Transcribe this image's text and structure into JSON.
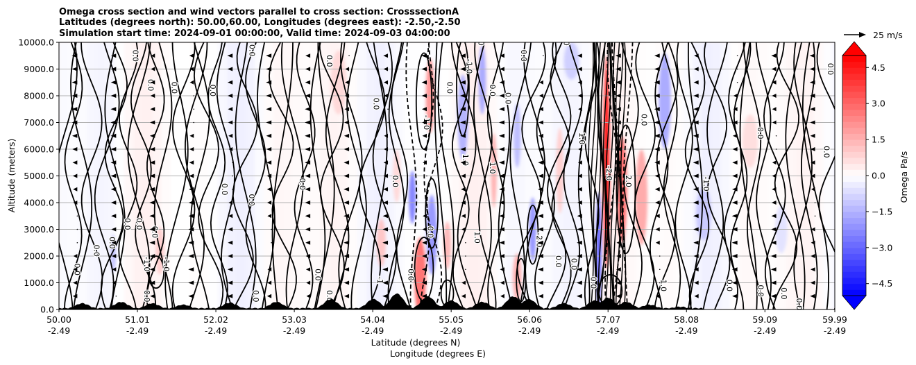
{
  "chart_data": {
    "type": "heatmap",
    "title_lines": [
      "Omega cross section and wind vectors parallel to cross section: CrosssectionA",
      "Latitudes (degrees north): 50.00,60.00, Longitudes (degrees east): -2.50,-2.50",
      "Simulation start time: 2024-09-01 00:00:00, Valid time: 2024-09-03 04:00:00"
    ],
    "ylabel": "Altitude (meters)",
    "xlabel_lines": [
      "Latitude (degrees N)",
      "Longitude (degrees E)"
    ],
    "ylim": [
      0,
      10000
    ],
    "yticks": [
      0,
      1000,
      2000,
      3000,
      4000,
      5000,
      6000,
      7000,
      8000,
      9000,
      10000
    ],
    "ytick_labels": [
      "0.0",
      "1000.0",
      "2000.0",
      "3000.0",
      "4000.0",
      "5000.0",
      "6000.0",
      "7000.0",
      "8000.0",
      "9000.0",
      "10000.0"
    ],
    "xlim": [
      50.0,
      59.99
    ],
    "xticks": [
      50.0,
      51.01,
      52.02,
      53.03,
      54.04,
      55.05,
      56.06,
      57.07,
      58.08,
      59.09,
      59.99
    ],
    "xtick_lat_labels": [
      "50.00",
      "51.01",
      "52.02",
      "53.03",
      "54.04",
      "55.05",
      "56.06",
      "57.07",
      "58.08",
      "59.09",
      "59.99"
    ],
    "xtick_lon_labels": [
      "-2.49",
      "-2.49",
      "-2.49",
      "-2.49",
      "-2.49",
      "-2.49",
      "-2.49",
      "-2.49",
      "-2.49",
      "-2.49",
      "-2.49"
    ],
    "grid": "horizontal",
    "colorbar": {
      "label": "Omega Pa/s",
      "range": [
        -5.0,
        5.0
      ],
      "step": 0.25,
      "ticks": [
        -4.5,
        -3.0,
        -1.5,
        0.0,
        1.5,
        3.0,
        4.5
      ],
      "tick_labels": [
        "−4.5",
        "−3.0",
        "−1.5",
        "0.0",
        "1.5",
        "3.0",
        "4.5"
      ],
      "extend": "both",
      "min_color": "#0000ff",
      "mid_color": "#ffffff",
      "max_color": "#ff0000"
    },
    "quiver_key": {
      "label": "25 m/s",
      "speed": 25
    },
    "wind_direction": "toward lower latitude (southward, leftward)",
    "contour_levels": [
      -2.0,
      -1.0,
      0.0,
      1.0,
      2.0
    ],
    "contour_labels": [
      {
        "lat": 50.95,
        "z": 9500,
        "text": "0.0"
      },
      {
        "lat": 52.45,
        "z": 9700,
        "text": "0.0"
      },
      {
        "lat": 53.45,
        "z": 9300,
        "text": "0.0"
      },
      {
        "lat": 51.15,
        "z": 8400,
        "text": "0.0"
      },
      {
        "lat": 51.45,
        "z": 8300,
        "text": "0.0"
      },
      {
        "lat": 51.95,
        "z": 8200,
        "text": "0.0"
      },
      {
        "lat": 54.05,
        "z": 7700,
        "text": "0.0"
      },
      {
        "lat": 55.0,
        "z": 8300,
        "text": "0.0"
      },
      {
        "lat": 55.55,
        "z": 8200,
        "text": "0.0"
      },
      {
        "lat": 55.75,
        "z": 7900,
        "text": "0.0"
      },
      {
        "lat": 55.95,
        "z": 9500,
        "text": "0.0"
      },
      {
        "lat": 56.5,
        "z": 10100,
        "text": "0.0"
      },
      {
        "lat": 55.4,
        "z": 10100,
        "text": "0.0"
      },
      {
        "lat": 57.5,
        "z": 7100,
        "text": "0.0"
      },
      {
        "lat": 59.0,
        "z": 6600,
        "text": "0.0"
      },
      {
        "lat": 59.9,
        "z": 9000,
        "text": "0.0"
      },
      {
        "lat": 59.85,
        "z": 5900,
        "text": "0.0"
      },
      {
        "lat": 54.7,
        "z": 7000,
        "text": "-1.0"
      },
      {
        "lat": 55.25,
        "z": 9100,
        "text": "-1.0"
      },
      {
        "lat": 56.7,
        "z": 6400,
        "text": "1.0"
      },
      {
        "lat": 58.3,
        "z": 4700,
        "text": "-1.0"
      },
      {
        "lat": 57.3,
        "z": 4800,
        "text": "2.0"
      },
      {
        "lat": 57.05,
        "z": 5100,
        "text": "-2.0"
      },
      {
        "lat": 56.15,
        "z": 2600,
        "text": "-2.0"
      },
      {
        "lat": 55.2,
        "z": 5600,
        "text": "1.0"
      },
      {
        "lat": 55.55,
        "z": 5300,
        "text": "1.0"
      },
      {
        "lat": 54.3,
        "z": 4800,
        "text": "0.0"
      },
      {
        "lat": 53.1,
        "z": 4700,
        "text": "0.0"
      },
      {
        "lat": 52.1,
        "z": 4500,
        "text": "0.0"
      },
      {
        "lat": 52.45,
        "z": 4100,
        "text": "0.0"
      },
      {
        "lat": 51.0,
        "z": 3200,
        "text": "0.0"
      },
      {
        "lat": 51.2,
        "z": 2900,
        "text": "0.0"
      },
      {
        "lat": 50.85,
        "z": 3200,
        "text": "0.0"
      },
      {
        "lat": 50.45,
        "z": 2200,
        "text": "0.0"
      },
      {
        "lat": 50.65,
        "z": 2500,
        "text": "0.0"
      },
      {
        "lat": 51.1,
        "z": 1700,
        "text": "-1.0"
      },
      {
        "lat": 51.35,
        "z": 1700,
        "text": "-1.0"
      },
      {
        "lat": 54.75,
        "z": 2900,
        "text": "0.0"
      },
      {
        "lat": 55.35,
        "z": 2700,
        "text": "1.0"
      },
      {
        "lat": 56.4,
        "z": 1800,
        "text": "0.0"
      },
      {
        "lat": 56.6,
        "z": 1700,
        "text": "0.0"
      },
      {
        "lat": 50.2,
        "z": 1500,
        "text": "0.0"
      },
      {
        "lat": 53.3,
        "z": 1300,
        "text": "0.0"
      },
      {
        "lat": 54.5,
        "z": 1300,
        "text": "0.0"
      },
      {
        "lat": 54.1,
        "z": 1100,
        "text": "-1"
      },
      {
        "lat": 53.45,
        "z": 500,
        "text": "0.0"
      },
      {
        "lat": 52.5,
        "z": 500,
        "text": "0.0"
      },
      {
        "lat": 51.1,
        "z": 500,
        "text": "0.0"
      },
      {
        "lat": 58.6,
        "z": 900,
        "text": "0.0"
      },
      {
        "lat": 59.0,
        "z": 700,
        "text": "0.0"
      },
      {
        "lat": 59.3,
        "z": 600,
        "text": "0.0"
      },
      {
        "lat": 59.5,
        "z": 200,
        "text": "0.0"
      },
      {
        "lat": 57.75,
        "z": 900,
        "text": "1.0"
      },
      {
        "lat": 56.85,
        "z": 1000,
        "text": "0.0"
      }
    ]
  }
}
